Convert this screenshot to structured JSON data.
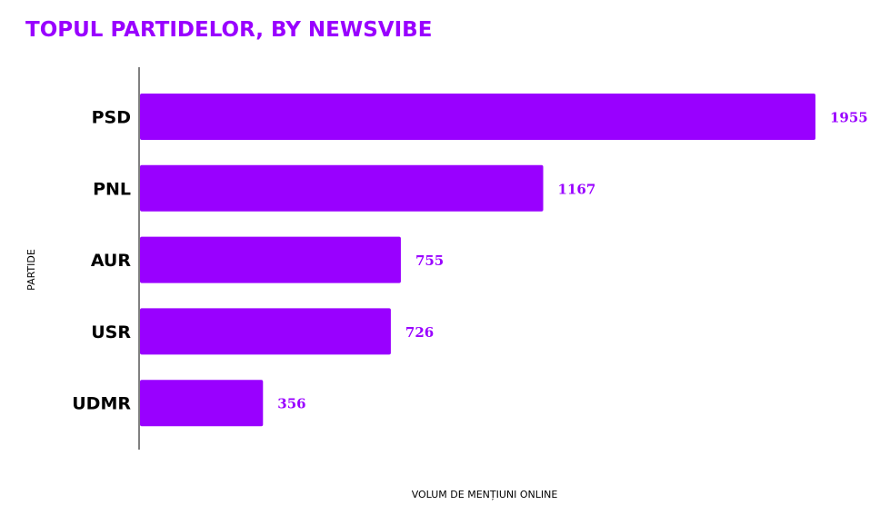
{
  "title": "TOPUL PARTIDELOR, BY NEWSVIBE",
  "colors": {
    "bar": "#9900ff",
    "title": "#9900ff",
    "value_label": "#9900ff",
    "axis": "#000000"
  },
  "chart_data": {
    "type": "bar",
    "orientation": "horizontal",
    "categories": [
      "PSD",
      "PNL",
      "AUR",
      "USR",
      "UDMR"
    ],
    "values": [
      1955,
      1167,
      755,
      726,
      356
    ],
    "xlabel": "VOLUM DE MENȚIUNI ONLINE",
    "ylabel": "PARTIDE",
    "xlim": [
      0,
      1955
    ],
    "grid": false,
    "legend": "none",
    "data_labels": true
  }
}
